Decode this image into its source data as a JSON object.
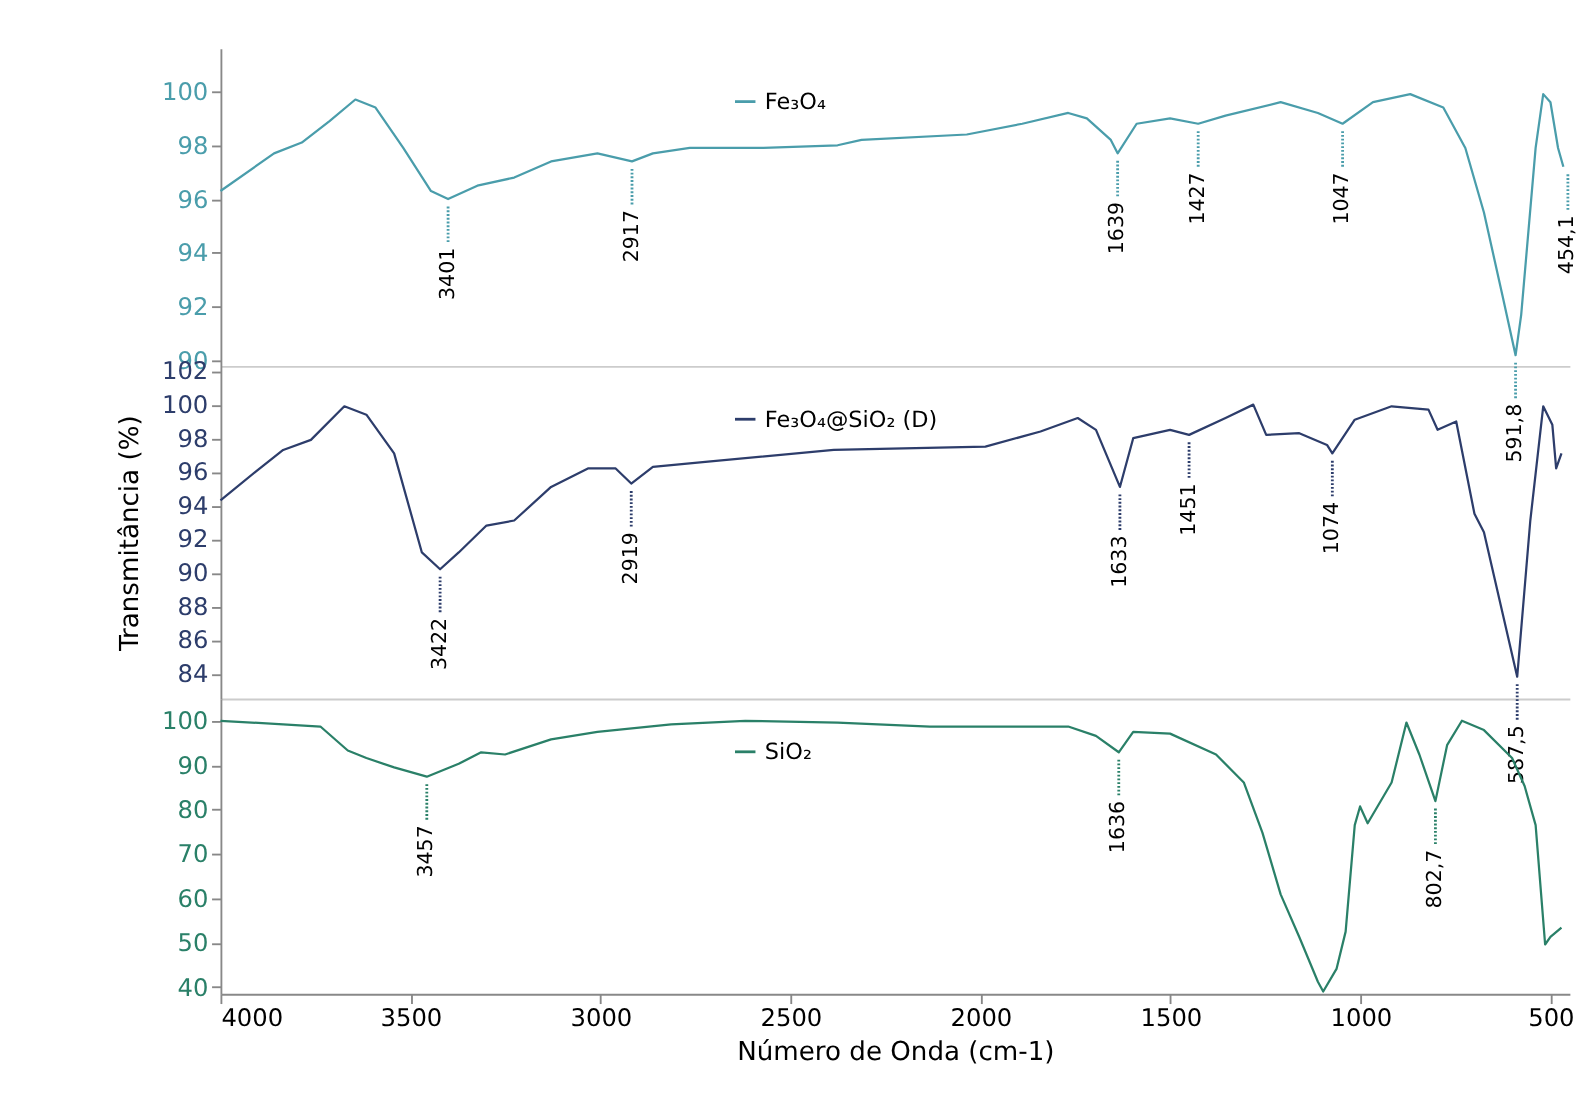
{
  "chart_data": [
    {
      "type": "line",
      "xlim": [
        4000,
        450
      ],
      "ylim": [
        89.8,
        101.6
      ],
      "yticks": [
        90,
        92,
        94,
        96,
        98,
        100
      ],
      "tick_labels": "y",
      "legend": "top",
      "grid": false,
      "series": [
        {
          "name": "Fe₃O₄",
          "color": "#4a9dab",
          "x": [
            4000,
            3859,
            3786,
            3713,
            3645,
            3592,
            3519,
            3446,
            3401,
            3324,
            3227,
            3130,
            3008,
            2917,
            2862,
            2765,
            2571,
            2376,
            2313,
            2036,
            1890,
            1769,
            1720,
            1657,
            1639,
            1589,
            1501,
            1427,
            1355,
            1210,
            1112,
            1047,
            967,
            869,
            782,
            724,
            675,
            626,
            591.8,
            577,
            539,
            519,
            500,
            480,
            466
          ],
          "values": [
            96.3,
            97.7,
            98.1,
            98.9,
            99.7,
            99.4,
            97.9,
            96.3,
            96.0,
            96.5,
            96.8,
            97.4,
            97.7,
            97.4,
            97.7,
            97.9,
            97.9,
            98.0,
            98.2,
            98.4,
            98.8,
            99.2,
            99.0,
            98.2,
            97.7,
            98.8,
            99.0,
            98.8,
            99.1,
            99.6,
            99.2,
            98.8,
            99.6,
            99.9,
            99.4,
            97.9,
            95.5,
            92.4,
            90.2,
            91.7,
            97.9,
            99.9,
            99.6,
            97.9,
            97.2
          ]
        }
      ],
      "annotations": [
        {
          "text": "3401",
          "x": 3401,
          "y": 96.0
        },
        {
          "text": "2917",
          "x": 2917,
          "y": 97.4
        },
        {
          "text": "1639",
          "x": 1639,
          "y": 97.7
        },
        {
          "text": "1427",
          "x": 1427,
          "y": 98.8
        },
        {
          "text": "1047",
          "x": 1047,
          "y": 98.8
        },
        {
          "text": "591,8",
          "x": 591.8,
          "y": 90.2
        },
        {
          "text": "454,1",
          "x": 454.1,
          "y": 97.2
        }
      ]
    },
    {
      "type": "line",
      "xlim": [
        4000,
        450
      ],
      "ylim": [
        82.5,
        102.3
      ],
      "yticks": [
        84,
        86,
        88,
        90,
        92,
        94,
        96,
        98,
        100,
        102
      ],
      "ylabel": "Transmitância (%)",
      "tick_labels": "y",
      "legend": "top",
      "grid": false,
      "series": [
        {
          "name": "Fe₃O₄@SiO₂ (D)",
          "color": "#2d3d6b",
          "x": [
            4000,
            3908,
            3835,
            3762,
            3674,
            3616,
            3543,
            3470,
            3422,
            3373,
            3300,
            3227,
            3130,
            3033,
            2960,
            2919,
            2862,
            2717,
            2386,
            1987,
            1842,
            1744,
            1696,
            1633,
            1598,
            1501,
            1451,
            1355,
            1282,
            1248,
            1161,
            1088,
            1074,
            1015,
            918,
            821,
            797,
            748,
            700,
            675,
            587.5,
            553,
            519,
            495,
            485,
            471
          ],
          "values": [
            94.3,
            96.0,
            97.3,
            97.9,
            99.9,
            99.4,
            97.1,
            91.2,
            90.2,
            91.2,
            92.8,
            93.1,
            95.1,
            96.2,
            96.2,
            95.3,
            96.3,
            96.6,
            97.3,
            97.5,
            98.4,
            99.2,
            98.5,
            95.1,
            98.0,
            98.5,
            98.2,
            99.2,
            100.0,
            98.2,
            98.3,
            97.6,
            97.1,
            99.1,
            99.9,
            99.7,
            98.5,
            99.0,
            93.5,
            92.4,
            83.8,
            93.1,
            99.9,
            98.8,
            96.2,
            97.1
          ]
        }
      ],
      "annotations": [
        {
          "text": "3422",
          "x": 3422,
          "y": 90.2
        },
        {
          "text": "2919",
          "x": 2919,
          "y": 95.3
        },
        {
          "text": "1633",
          "x": 1633,
          "y": 95.1
        },
        {
          "text": "1451",
          "x": 1451,
          "y": 98.2
        },
        {
          "text": "1074",
          "x": 1074,
          "y": 97.1
        },
        {
          "text": "587,5",
          "x": 587.5,
          "y": 83.8
        }
      ]
    },
    {
      "type": "line",
      "xlim": [
        4000,
        450
      ],
      "ylim": [
        38.5,
        105
      ],
      "yticks": [
        40,
        50,
        60,
        70,
        80,
        90,
        100
      ],
      "xticks": [
        4000,
        3500,
        3000,
        2500,
        2000,
        1500,
        1000,
        500
      ],
      "xlabel": "Número de Onda (cm-1)",
      "legend": "top",
      "grid": false,
      "series": [
        {
          "name": "SiO₂",
          "color": "#2a8068",
          "x": [
            4000,
            3737,
            3665,
            3616,
            3543,
            3457,
            3373,
            3314,
            3251,
            3130,
            3008,
            2814,
            2619,
            2376,
            2133,
            1769,
            1696,
            1636,
            1598,
            1501,
            1380,
            1307,
            1258,
            1210,
            1161,
            1112,
            1098,
            1063,
            1039,
            1015,
            1001,
            981,
            918,
            879,
            845,
            802.7,
            772,
            733,
            675,
            601,
            568,
            539,
            514,
            500,
            471
          ],
          "values": [
            100,
            98.7,
            93.3,
            91.6,
            89.5,
            87.4,
            90.3,
            92.9,
            92.4,
            95.8,
            97.5,
            99.2,
            100,
            99.6,
            98.7,
            98.7,
            96.6,
            92.9,
            97.5,
            97.1,
            92.4,
            86.1,
            74.8,
            60.9,
            51.3,
            41.2,
            39,
            44.1,
            52.5,
            76.5,
            80.7,
            76.9,
            86.1,
            99.6,
            92.4,
            81.9,
            94.5,
            100,
            97.9,
            91.6,
            85.3,
            76.5,
            49.6,
            51.3,
            53.4
          ]
        }
      ],
      "annotations": [
        {
          "text": "3457",
          "x": 3457,
          "y": 87.4
        },
        {
          "text": "1636",
          "x": 1636,
          "y": 92.9
        },
        {
          "text": "802,7",
          "x": 802.7,
          "y": 81.9
        }
      ]
    }
  ]
}
